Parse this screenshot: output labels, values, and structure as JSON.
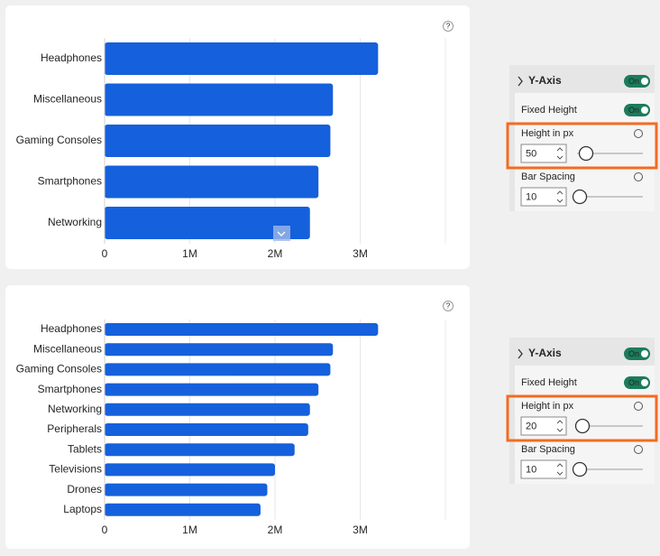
{
  "chart_data": [
    {
      "type": "hbar",
      "color": "#1560dc",
      "grid": true,
      "categories": [
        "Headphones",
        "Miscellaneous",
        "Gaming Consoles",
        "Smartphones",
        "Networking"
      ],
      "values": [
        3210000,
        2680000,
        2650000,
        2510000,
        2410000
      ],
      "xlim": [
        0,
        4000000
      ],
      "xticks": [
        0,
        {
          "value": 1000000,
          "label": "1M"
        },
        {
          "value": 2000000,
          "label": "2M"
        },
        {
          "value": 3000000,
          "label": "3M"
        }
      ]
    },
    {
      "type": "hbar",
      "color": "#1560dc",
      "grid": true,
      "categories": [
        "Headphones",
        "Miscellaneous",
        "Gaming Consoles",
        "Smartphones",
        "Networking",
        "Peripherals",
        "Tablets",
        "Televisions",
        "Drones",
        "Laptops"
      ],
      "values": [
        3210000,
        2680000,
        2650000,
        2510000,
        2410000,
        2390000,
        2230000,
        2000000,
        1910000,
        1830000
      ],
      "xlim": [
        0,
        4000000
      ],
      "xticks": [
        0,
        {
          "value": 1000000,
          "label": "1M"
        },
        {
          "value": 2000000,
          "label": "2M"
        },
        {
          "value": 3000000,
          "label": "3M"
        }
      ]
    }
  ],
  "panels": [
    {
      "title": "Y-Axis",
      "toggle": "On",
      "fixed_height": "Fixed Height",
      "fixed_toggle": "On",
      "height_label": "Height in px",
      "height_value": "50",
      "spacing_label": "Bar Spacing",
      "spacing_value": "10"
    },
    {
      "title": "Y-Axis",
      "toggle": "On",
      "fixed_height": "Fixed Height",
      "fixed_toggle": "On",
      "height_label": "Height in px",
      "height_value": "20",
      "spacing_label": "Bar Spacing",
      "spacing_value": "10"
    }
  ]
}
